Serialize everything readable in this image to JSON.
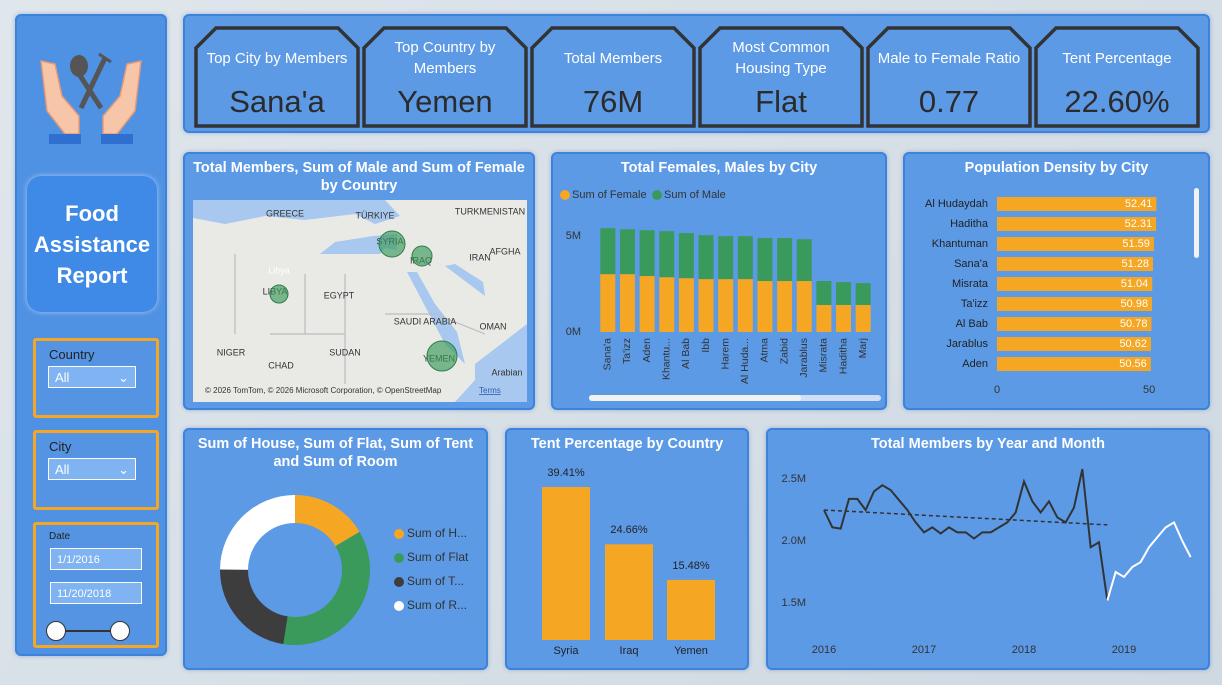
{
  "sidebar": {
    "title": "Food Assistance Report",
    "filters": [
      {
        "label": "Country",
        "value": "All"
      },
      {
        "label": "City",
        "value": "All"
      }
    ],
    "date": {
      "label": "Date",
      "start": "1/1/2016",
      "end": "11/20/2018"
    }
  },
  "kpis": [
    {
      "label": "Top City by Members",
      "value": "Sana'a"
    },
    {
      "label": "Top Country by Members",
      "value": "Yemen"
    },
    {
      "label": "Total Members",
      "value": "76M"
    },
    {
      "label": "Most Common Housing Type",
      "value": "Flat"
    },
    {
      "label": "Male to Female Ratio",
      "value": "0.77"
    },
    {
      "label": "Tent Percentage",
      "value": "22.60%"
    }
  ],
  "chart_data": [
    {
      "type": "map",
      "title": "Total Members, Sum of Male and Sum of Female by Country",
      "labels": [
        "GREECE",
        "TÜRKIYE",
        "TURKMENISTAN",
        "SYRIA",
        "IRAQ",
        "AFGHA",
        "IRAN",
        "Libya",
        "LIBYA",
        "EGYPT",
        "SAUDI ARABIA",
        "OMAN",
        "NIGER",
        "CHAD",
        "SUDAN",
        "YEMEN",
        "Arabian"
      ],
      "attribution": "© 2026 TomTom, © 2026 Microsoft Corporation, © OpenStreetMap",
      "terms": "Terms"
    },
    {
      "type": "stacked_bar",
      "title": "Total Females, Males by City",
      "categories": [
        "Sana'a",
        "Ta'izz",
        "Aden",
        "Khantu...",
        "Al Bab",
        "Ibb",
        "Harem",
        "Al Huda...",
        "Atma",
        "Zabid",
        "Jarablus",
        "Misrata",
        "Haditha",
        "Marj"
      ],
      "series": [
        {
          "name": "Sum of Female",
          "color": "#f5a623",
          "values": [
            3020000,
            3020000,
            2920000,
            2860000,
            2810000,
            2760000,
            2760000,
            2760000,
            2660000,
            2660000,
            2660000,
            1410000,
            1410000,
            1410000
          ]
        },
        {
          "name": "Sum of Male",
          "color": "#3a9a5b",
          "values": [
            2400000,
            2340000,
            2390000,
            2400000,
            2350000,
            2290000,
            2240000,
            2240000,
            2240000,
            2240000,
            2180000,
            1250000,
            1190000,
            1140000
          ]
        }
      ],
      "ylim": [
        0,
        6000000
      ],
      "yticks": [
        {
          "value": 0,
          "label": "0M"
        },
        {
          "value": 5000000,
          "label": "5M"
        }
      ]
    },
    {
      "type": "hbar",
      "title": "Population Density by City",
      "categories": [
        "Al Hudaydah",
        "Haditha",
        "Khantuman",
        "Sana'a",
        "Misrata",
        "Ta'izz",
        "Al Bab",
        "Jarablus",
        "Aden"
      ],
      "values": [
        52.41,
        52.31,
        51.59,
        51.28,
        51.04,
        50.98,
        50.78,
        50.62,
        50.56
      ],
      "color": "#f5a623",
      "xlim": [
        0,
        52.6
      ],
      "xticks": [
        0,
        50
      ]
    },
    {
      "type": "donut",
      "title": "Sum of House, Sum of Flat, Sum of Tent and Sum of Room",
      "series": [
        {
          "name": "Sum of H...",
          "color": "#f5a623",
          "values": [
            16.5
          ]
        },
        {
          "name": "Sum of Flat",
          "color": "#3a9a5b",
          "values": [
            36
          ]
        },
        {
          "name": "Sum of T...",
          "color": "#3d3d3d",
          "values": [
            22.6
          ]
        },
        {
          "name": "Sum of R...",
          "color": "#ffffff",
          "values": [
            24.9
          ]
        }
      ]
    },
    {
      "type": "bar",
      "title": "Tent Percentage by Country",
      "categories": [
        "Syria",
        "Iraq",
        "Yemen"
      ],
      "values": [
        39.41,
        24.66,
        15.48
      ],
      "value_labels": [
        "39.41%",
        "24.66%",
        "15.48%"
      ],
      "color": "#f5a623"
    },
    {
      "type": "line",
      "title": "Total Members by Year and Month",
      "categories": [
        "2016",
        null,
        null,
        null,
        null,
        null,
        null,
        null,
        null,
        null,
        null,
        null,
        "2017",
        null,
        null,
        null,
        null,
        null,
        null,
        null,
        null,
        null,
        null,
        null,
        "2018",
        null,
        null,
        null,
        null,
        null,
        null,
        null,
        null,
        null,
        null,
        null,
        "2019",
        null,
        null,
        null,
        null,
        null,
        null,
        null,
        null
      ],
      "series": [
        {
          "color": "#333333",
          "values": [
            2250000,
            2110000,
            2100000,
            2340000,
            2340000,
            2250000,
            2400000,
            2450000,
            2410000,
            2330000,
            2250000,
            2150000,
            2070000,
            2110000,
            2060000,
            2110000,
            2070000,
            2070000,
            2020000,
            2070000,
            2070000,
            2110000,
            2150000,
            2230000,
            2480000,
            2320000,
            2230000,
            2320000,
            2190000,
            2150000,
            2270000,
            2580000,
            1950000,
            1990000,
            1520000,
            null,
            null,
            null,
            null,
            null,
            null,
            null,
            null,
            null,
            null
          ]
        },
        {
          "color": "#ffffff",
          "values": [
            null,
            null,
            null,
            null,
            null,
            null,
            null,
            null,
            null,
            null,
            null,
            null,
            null,
            null,
            null,
            null,
            null,
            null,
            null,
            null,
            null,
            null,
            null,
            null,
            null,
            null,
            null,
            null,
            null,
            null,
            null,
            null,
            null,
            null,
            1520000,
            1750000,
            1710000,
            1790000,
            1830000,
            1950000,
            2030000,
            2110000,
            2150000,
            2000000,
            1870000
          ]
        }
      ],
      "trend_values": [
        2250000,
        2130000
      ],
      "trend_color": "#333333",
      "ylim": [
        1350000,
        2650000
      ],
      "yticks": [
        {
          "value": 1500000,
          "label": "1.5M"
        },
        {
          "value": 2000000,
          "label": "2.0M"
        },
        {
          "value": 2500000,
          "label": "2.5M"
        }
      ]
    }
  ]
}
